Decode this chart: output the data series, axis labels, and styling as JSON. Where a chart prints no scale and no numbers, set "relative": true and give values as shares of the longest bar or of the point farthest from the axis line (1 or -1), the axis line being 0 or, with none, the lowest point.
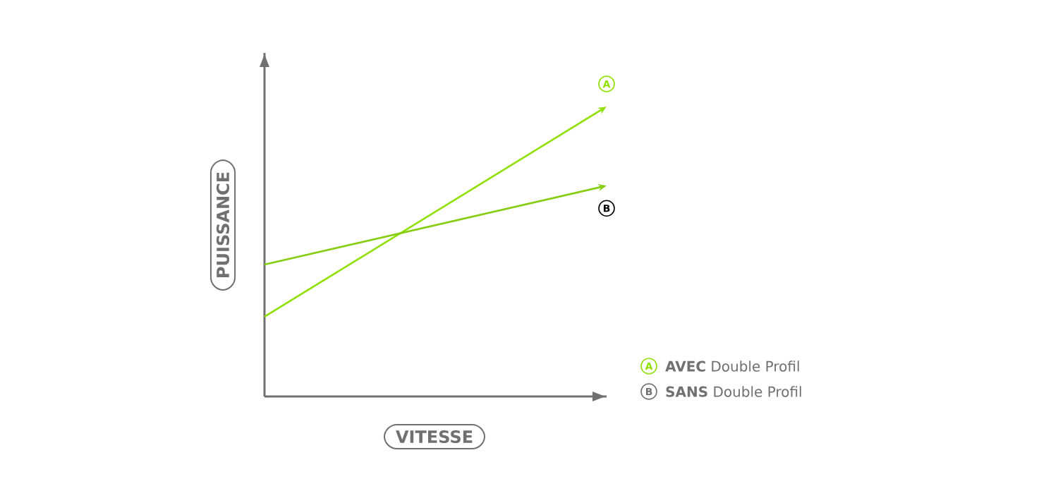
{
  "chart_data": {
    "type": "line",
    "relative": true,
    "xlabel": "VITESSE",
    "ylabel": "PUISSANCE",
    "categories": [
      null,
      null
    ],
    "series": [
      {
        "name": "**AVEC** Double Profil",
        "color": "#8fe000",
        "values": [
          0.275,
          1
        ]
      },
      {
        "name": "**SANS** Double Profil",
        "color": "#86cc10",
        "values": [
          0.455,
          0.727
        ]
      }
    ],
    "annotations": [
      "A",
      "B"
    ],
    "legend": "bottom right"
  }
}
